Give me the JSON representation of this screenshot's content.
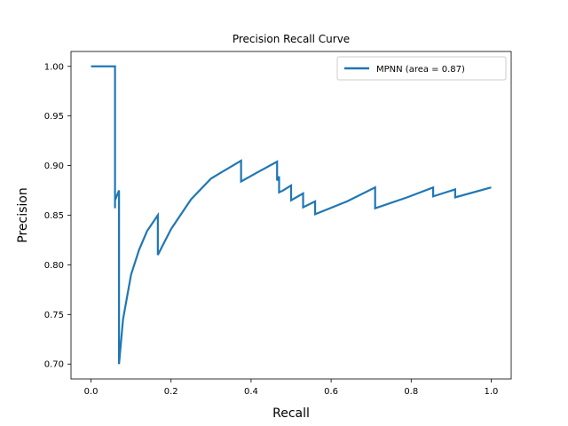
{
  "chart_data": {
    "type": "line",
    "title": "Precision Recall Curve",
    "xlabel": "Recall",
    "ylabel": "Precision",
    "xlim": [
      -0.05,
      1.05
    ],
    "ylim": [
      0.685,
      1.015
    ],
    "xticks": [
      0.0,
      0.2,
      0.4,
      0.6,
      0.8,
      1.0
    ],
    "xtick_labels": [
      "0.0",
      "0.2",
      "0.4",
      "0.6",
      "0.8",
      "1.0"
    ],
    "yticks": [
      0.7,
      0.75,
      0.8,
      0.85,
      0.9,
      0.95,
      1.0
    ],
    "ytick_labels": [
      "0.70",
      "0.75",
      "0.80",
      "0.85",
      "0.90",
      "0.95",
      "1.00"
    ],
    "grid": false,
    "legend_position": "top-right",
    "series": [
      {
        "name": "MPNN (area = 0.87)",
        "color": "#1f77b4",
        "x": [
          0.0,
          0.06,
          0.06,
          0.06,
          0.07,
          0.07,
          0.08,
          0.1,
          0.12,
          0.14,
          0.167,
          0.167,
          0.2,
          0.25,
          0.3,
          0.375,
          0.375,
          0.415,
          0.465,
          0.465,
          0.47,
          0.47,
          0.48,
          0.5,
          0.5,
          0.53,
          0.53,
          0.56,
          0.56,
          0.64,
          0.71,
          0.71,
          0.79,
          0.855,
          0.855,
          0.91,
          0.91,
          1.0
        ],
        "y": [
          1.0,
          1.0,
          0.857,
          0.865,
          0.875,
          0.7,
          0.745,
          0.79,
          0.815,
          0.834,
          0.85,
          0.81,
          0.836,
          0.866,
          0.887,
          0.905,
          0.884,
          0.893,
          0.904,
          0.885,
          0.889,
          0.873,
          0.875,
          0.88,
          0.865,
          0.872,
          0.858,
          0.864,
          0.851,
          0.864,
          0.878,
          0.857,
          0.868,
          0.878,
          0.869,
          0.876,
          0.868,
          0.878
        ]
      }
    ]
  }
}
